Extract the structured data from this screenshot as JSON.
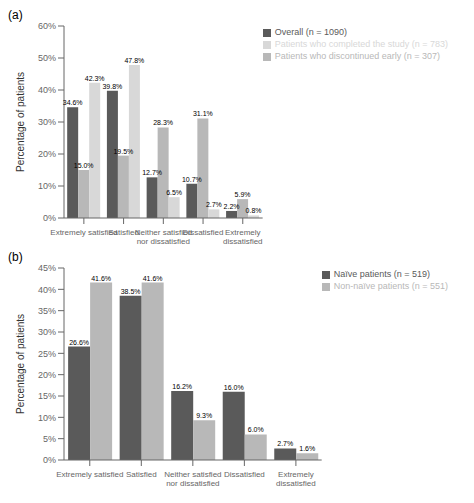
{
  "chart_data": [
    {
      "type": "bar",
      "title": "(a)",
      "ylabel": "Percentage of patients",
      "categories": [
        "Extremely satisfied",
        "Satisfied",
        "Neither satisfied\nnor dissatisfied",
        "Dissatisfied",
        "Extremely\ndissatisfied"
      ],
      "series": [
        {
          "name": "Overall (n = 1090)",
          "color": "#5a5a5a",
          "values": [
            34.6,
            39.8,
            12.7,
            10.7,
            2.2
          ],
          "value_labels": [
            "34.6%",
            "39.8%",
            "12.7%",
            "10.7%",
            "2.2%"
          ]
        },
        {
          "name": "Patients who discontinued early (n = 307)",
          "color": "#b8b8b8",
          "values": [
            15.0,
            19.5,
            28.3,
            31.1,
            5.9
          ],
          "value_labels": [
            "15.0%",
            "19.5%",
            "28.3%",
            "31.1%",
            "5.9%"
          ]
        },
        {
          "name": "Patients who completed the study (n = 783)",
          "color": "#d8d8d8",
          "values": [
            42.3,
            47.8,
            6.5,
            2.7,
            0.8
          ],
          "value_labels": [
            "42.3%",
            "47.8%",
            "6.5%",
            "2.7%",
            "0.8%"
          ]
        }
      ],
      "ylim": [
        0,
        60
      ],
      "yticks": [
        {
          "value": 0,
          "label": "0%"
        },
        {
          "value": 10,
          "label": "10%"
        },
        {
          "value": 20,
          "label": "20%"
        },
        {
          "value": 30,
          "label": "30%"
        },
        {
          "value": 40,
          "label": "40%"
        },
        {
          "value": 50,
          "label": "50%"
        },
        {
          "value": 60,
          "label": "60%"
        }
      ],
      "legend": "upper right",
      "data_labels": true,
      "grid": false
    },
    {
      "type": "bar",
      "title": "(b)",
      "ylabel": "Percentage of patients",
      "categories": [
        "Extremely satisfied",
        "Satisfied",
        "Neither satisfied\nnor dissatisfied",
        "Dissatisfied",
        "Extremely\ndissatisfied"
      ],
      "series": [
        {
          "name": "Naïve patients (n = 519)",
          "color": "#5a5a5a",
          "values": [
            26.6,
            38.5,
            16.2,
            16.0,
            2.7
          ],
          "value_labels": [
            "26.6%",
            "38.5%",
            "16.2%",
            "16.0%",
            "2.7%"
          ]
        },
        {
          "name": "Non-naïve patients (n = 551)",
          "color": "#b8b8b8",
          "values": [
            41.6,
            41.6,
            9.3,
            6.0,
            1.6
          ],
          "value_labels": [
            "41.6%",
            "41.6%",
            "9.3%",
            "6.0%",
            "1.6%"
          ]
        }
      ],
      "ylim": [
        0,
        45
      ],
      "yticks": [
        {
          "value": 0,
          "label": "0%"
        },
        {
          "value": 5,
          "label": "5%"
        },
        {
          "value": 10,
          "label": "10%"
        },
        {
          "value": 15,
          "label": "15%"
        },
        {
          "value": 20,
          "label": "20%"
        },
        {
          "value": 25,
          "label": "25%"
        },
        {
          "value": 30,
          "label": "30%"
        },
        {
          "value": 35,
          "label": "35%"
        },
        {
          "value": 40,
          "label": "40%"
        },
        {
          "value": 45,
          "label": "45%"
        }
      ],
      "legend": "upper right",
      "data_labels": true,
      "grid": false
    }
  ]
}
